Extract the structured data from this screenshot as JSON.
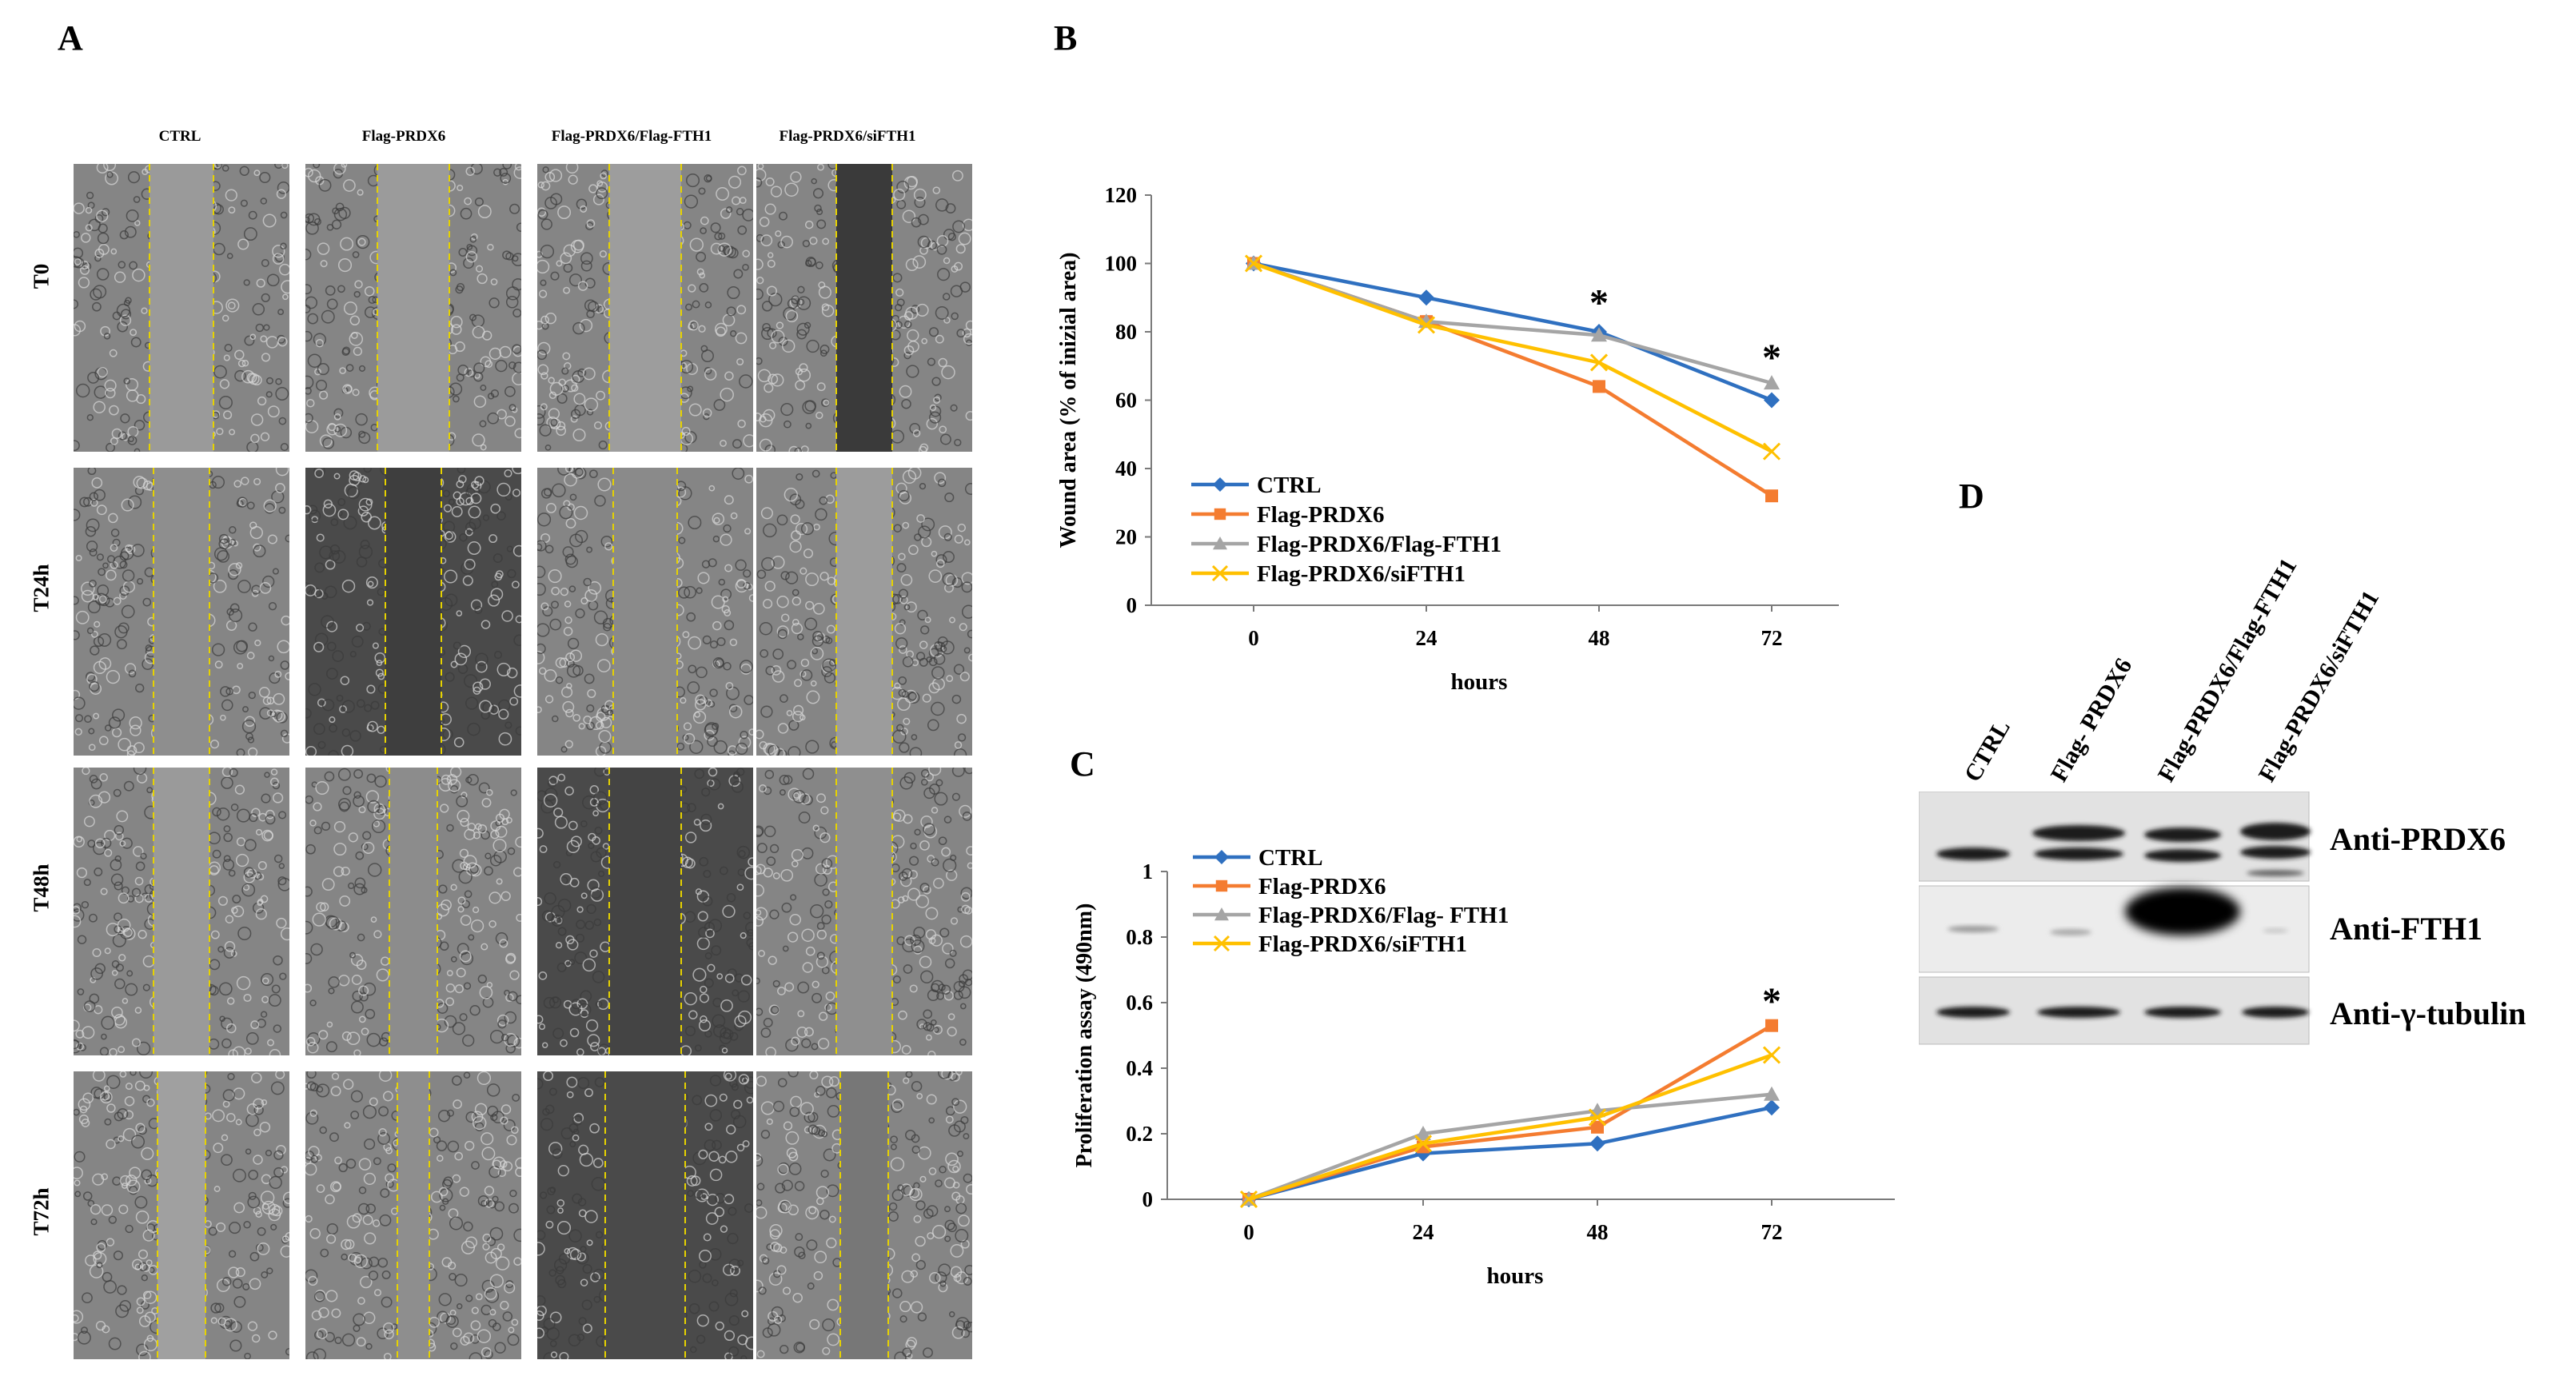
{
  "panels": {
    "a": "A",
    "b": "B",
    "c": "C",
    "d": "D"
  },
  "wound_images": {
    "columns": [
      "CTRL",
      "Flag-PRDX6",
      "Flag-PRDX6/Flag-FTH1",
      "Flag-PRDX6/siFTH1"
    ],
    "rows": [
      "T0",
      "T24h",
      "T48h",
      "T72h"
    ]
  },
  "colors": {
    "ctrl": "#2f70c0",
    "prdx6": "#f47c30",
    "fth1": "#a5a5a5",
    "sifth1": "#ffc000"
  },
  "chart_data": [
    {
      "type": "line",
      "title": "",
      "xlabel": "hours",
      "ylabel": "Wound area (% of  inizial  area)",
      "x": [
        0,
        24,
        48,
        72
      ],
      "ylim": [
        0,
        120
      ],
      "yticks": [
        0,
        20,
        40,
        60,
        80,
        100,
        120
      ],
      "grid": false,
      "legend": "lower-left",
      "series": [
        {
          "name": "CTRL",
          "values": [
            100,
            90,
            80,
            60
          ],
          "marker": "diamond",
          "color": "#2f70c0"
        },
        {
          "name": "Flag-PRDX6",
          "values": [
            100,
            83,
            64,
            32
          ],
          "marker": "square",
          "color": "#f47c30"
        },
        {
          "name": "Flag-PRDX6/Flag-FTH1",
          "values": [
            100,
            83,
            79,
            65
          ],
          "marker": "triangle",
          "color": "#a5a5a5"
        },
        {
          "name": "Flag-PRDX6/siFTH1",
          "values": [
            100,
            82,
            71,
            45
          ],
          "marker": "x",
          "color": "#ffc000"
        }
      ],
      "annotations": [
        {
          "text": "*",
          "x": 48,
          "y": 89
        },
        {
          "text": "*",
          "x": 72,
          "y": 73
        }
      ]
    },
    {
      "type": "line",
      "title": "",
      "xlabel": "hours",
      "ylabel": "Proliferation assay (490nm)",
      "x": [
        0,
        24,
        48,
        72
      ],
      "ylim": [
        0,
        1
      ],
      "yticks": [
        0,
        0.2,
        0.4,
        0.6,
        0.8,
        1
      ],
      "grid": false,
      "legend": "top-left",
      "series": [
        {
          "name": "CTRL",
          "values": [
            0,
            0.14,
            0.17,
            0.28
          ],
          "marker": "diamond",
          "color": "#2f70c0"
        },
        {
          "name": "Flag-PRDX6",
          "values": [
            0,
            0.16,
            0.22,
            0.53
          ],
          "marker": "square",
          "color": "#f47c30"
        },
        {
          "name": "Flag-PRDX6/Flag- FTH1",
          "values": [
            0,
            0.2,
            0.27,
            0.32
          ],
          "marker": "triangle",
          "color": "#a5a5a5"
        },
        {
          "name": "Flag-PRDX6/siFTH1",
          "values": [
            0,
            0.17,
            0.25,
            0.44
          ],
          "marker": "x",
          "color": "#ffc000"
        }
      ],
      "annotations": [
        {
          "text": "*",
          "x": 72,
          "y": 0.61
        }
      ]
    }
  ],
  "western_blot": {
    "lanes": [
      "CTRL",
      "Flag- PRDX6",
      "Flag-PRDX6/Flag-FTH1",
      "Flag-PRDX6/siFTH1"
    ],
    "antibodies": [
      "Anti-PRDX6",
      "Anti-FTH1",
      "Anti-γ-tubulin"
    ]
  }
}
